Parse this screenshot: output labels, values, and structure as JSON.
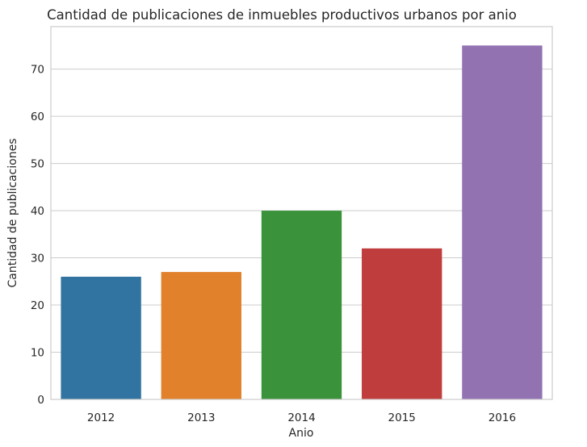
{
  "chart_data": {
    "type": "bar",
    "title": "Cantidad de publicaciones de inmuebles productivos urbanos por anio",
    "xlabel": "Anio",
    "ylabel": "Cantidad de publicaciones",
    "categories": [
      "2012",
      "2013",
      "2014",
      "2015",
      "2016"
    ],
    "values": [
      26,
      27,
      40,
      32,
      75
    ],
    "colors": [
      "#3274a1",
      "#e1812c",
      "#3a923a",
      "#c03d3e",
      "#9372b2"
    ],
    "ylim": [
      0,
      79
    ],
    "yticks": [
      0,
      10,
      20,
      30,
      40,
      50,
      60,
      70
    ],
    "grid": true
  }
}
